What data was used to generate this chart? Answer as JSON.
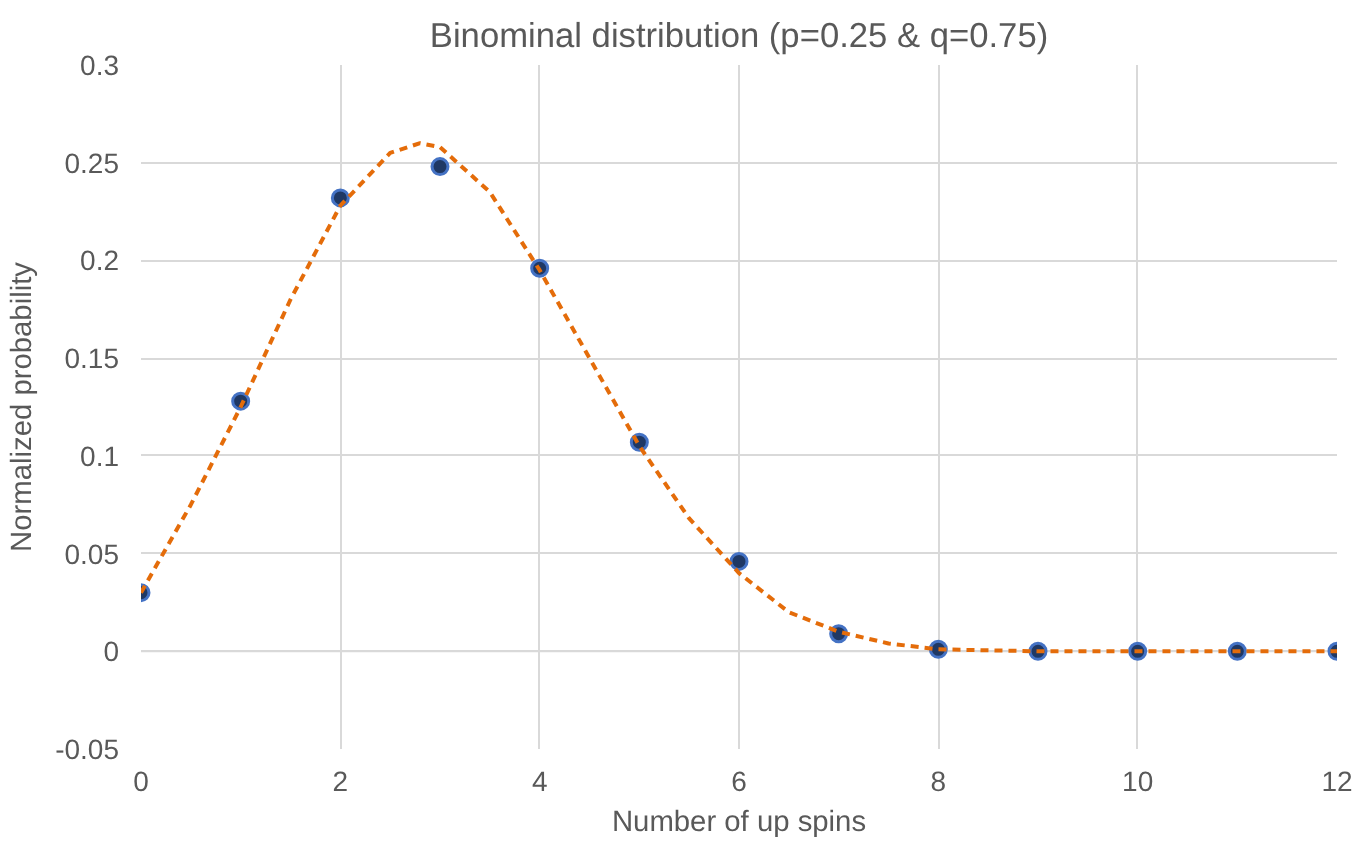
{
  "chart_data": {
    "type": "scatter",
    "title": "Binominal distribution (p=0.25 & q=0.75)",
    "xlabel": "Number of up spins",
    "ylabel": "Normalized probability",
    "x": [
      0,
      1,
      2,
      3,
      4,
      5,
      6,
      7,
      8,
      9,
      10,
      11,
      12
    ],
    "series": [
      {
        "color": "#1f3864",
        "marker": "circle",
        "values": [
          0.03,
          0.128,
          0.232,
          0.248,
          0.196,
          0.107,
          0.046,
          0.009,
          0.001,
          0,
          0,
          0,
          0
        ]
      },
      {
        "type": "line",
        "color": "#e46c0a",
        "line_style": "dashed",
        "marker": "none",
        "x": [
          0,
          0.5,
          1,
          1.5,
          2,
          2.5,
          2.8,
          3,
          3.5,
          4,
          4.5,
          5,
          5.5,
          6,
          6.5,
          7,
          7.5,
          8,
          9,
          10,
          11,
          12
        ],
        "values": [
          0.03,
          0.075,
          0.125,
          0.18,
          0.228,
          0.255,
          0.26,
          0.258,
          0.235,
          0.195,
          0.15,
          0.105,
          0.068,
          0.04,
          0.02,
          0.01,
          0.004,
          0.001,
          0,
          0,
          0,
          0
        ]
      }
    ],
    "xlim": [
      0,
      12
    ],
    "ylim": [
      -0.05,
      0.3
    ],
    "xticks": [
      0,
      2,
      4,
      6,
      8,
      10,
      12
    ],
    "yticks": [
      -0.05,
      0,
      0.05,
      0.1,
      0.15,
      0.2,
      0.25,
      0.3
    ],
    "grid": true
  }
}
